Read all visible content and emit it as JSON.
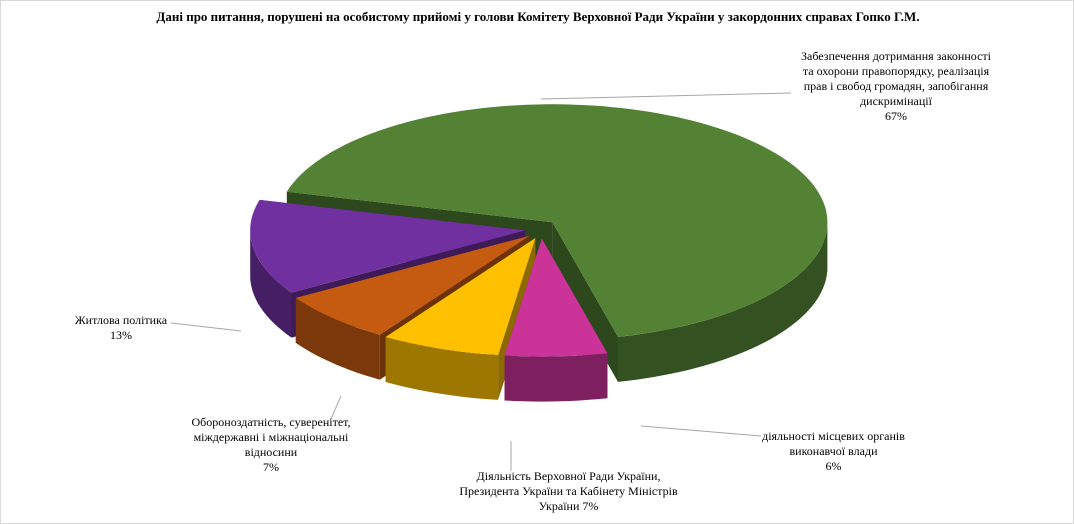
{
  "chart_data": {
    "type": "pie",
    "title": "Дані про питання, порушені на особистому прийомі у голови Комітету Верховної Ради України у закордонних справах Гопко Г.М.",
    "categories": [
      "Забезпечення дотримання законності та охорони правопорядку, реалізація прав і свобод громадян, запобігання дискримінації",
      "діяльності місцевих органів виконавчої влади",
      "Діяльність Верховної Ради України, Президента України та Кабінету Міністрів України",
      "Обороноздатність, суверенітет, міждержавні і міжнаціональні відносини",
      "Житлова політика"
    ],
    "values": [
      67,
      6,
      7,
      7,
      13
    ],
    "value_labels": [
      "67%",
      "6%",
      "7%",
      "7%",
      "13%"
    ],
    "colors": [
      "#548235",
      "#cc3399",
      "#ffc000",
      "#c55a11",
      "#7030a0"
    ]
  }
}
